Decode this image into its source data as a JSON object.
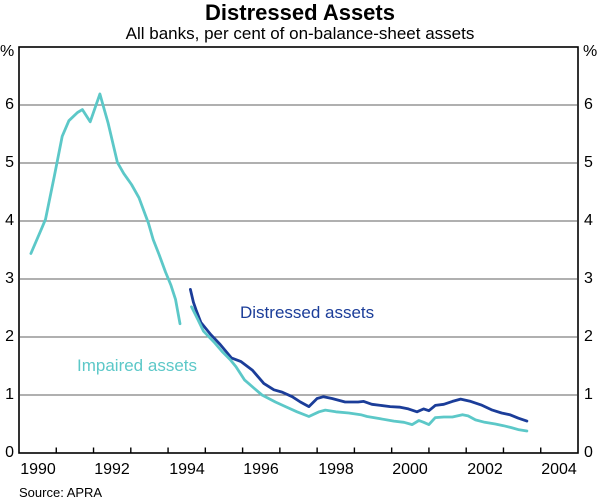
{
  "title": "Distressed Assets",
  "subtitle": "All banks, per cent of on-balance-sheet assets",
  "source": "Source: APRA",
  "axis": {
    "unit_left": "%",
    "unit_right": "%",
    "ytick_labels": [
      "0",
      "1",
      "2",
      "3",
      "4",
      "5",
      "6"
    ],
    "xtick_labels": [
      "1990",
      "1992",
      "1994",
      "1996",
      "1998",
      "2000",
      "2002",
      "2004"
    ]
  },
  "series_labels": {
    "distressed": "Distressed assets",
    "impaired": "Impaired assets"
  },
  "colors": {
    "distressed": "#1b3d99",
    "impaired": "#5cc8c8",
    "grid": "#808080",
    "axis": "#000000",
    "background": "#ffffff"
  },
  "chart_data": {
    "type": "line",
    "title": "Distressed Assets",
    "subtitle": "All banks, per cent of on-balance-sheet assets",
    "xlabel": "",
    "ylabel": "%",
    "x_range": [
      1990,
      2005
    ],
    "y_range": [
      0,
      7
    ],
    "y_gridlines": [
      1,
      2,
      3,
      4,
      5,
      6
    ],
    "x_tick_years": [
      1991,
      1992,
      1993,
      1994,
      1995,
      1996,
      1997,
      1998,
      1999,
      2000,
      2001,
      2002,
      2003,
      2004
    ],
    "x_label_years": [
      1990,
      1992,
      1994,
      1996,
      1998,
      2000,
      2002,
      2004
    ],
    "legend_position": "inline-labels",
    "grid": true,
    "series": [
      {
        "name": "Impaired assets (early series, pre break)",
        "color_key": "impaired",
        "points": [
          [
            1990.32,
            3.44
          ],
          [
            1990.62,
            3.89
          ],
          [
            1990.71,
            4.03
          ],
          [
            1990.95,
            4.78
          ],
          [
            1991.16,
            5.46
          ],
          [
            1991.34,
            5.73
          ],
          [
            1991.57,
            5.87
          ],
          [
            1991.7,
            5.92
          ],
          [
            1991.91,
            5.71
          ],
          [
            1992.17,
            6.19
          ],
          [
            1992.29,
            5.92
          ],
          [
            1992.39,
            5.69
          ],
          [
            1992.64,
            5.01
          ],
          [
            1992.81,
            4.82
          ],
          [
            1993.02,
            4.63
          ],
          [
            1993.22,
            4.4
          ],
          [
            1993.38,
            4.12
          ],
          [
            1993.47,
            3.97
          ],
          [
            1993.6,
            3.68
          ],
          [
            1993.76,
            3.42
          ],
          [
            1993.93,
            3.12
          ],
          [
            1994.08,
            2.89
          ],
          [
            1994.2,
            2.65
          ],
          [
            1994.32,
            2.23
          ]
        ]
      },
      {
        "name": "Distressed assets",
        "color_key": "distressed",
        "points": [
          [
            1994.6,
            2.82
          ],
          [
            1994.68,
            2.6
          ],
          [
            1994.75,
            2.47
          ],
          [
            1994.88,
            2.25
          ],
          [
            1995.15,
            2.04
          ],
          [
            1995.4,
            1.87
          ],
          [
            1995.7,
            1.64
          ],
          [
            1995.95,
            1.58
          ],
          [
            1996.26,
            1.43
          ],
          [
            1996.57,
            1.2
          ],
          [
            1996.84,
            1.09
          ],
          [
            1997.06,
            1.05
          ],
          [
            1997.33,
            0.97
          ],
          [
            1997.55,
            0.88
          ],
          [
            1997.78,
            0.8
          ],
          [
            1998.0,
            0.94
          ],
          [
            1998.17,
            0.97
          ],
          [
            1998.4,
            0.94
          ],
          [
            1998.75,
            0.88
          ],
          [
            1999.1,
            0.88
          ],
          [
            1999.25,
            0.89
          ],
          [
            1999.47,
            0.84
          ],
          [
            1999.7,
            0.82
          ],
          [
            1999.96,
            0.8
          ],
          [
            2000.23,
            0.79
          ],
          [
            2000.45,
            0.76
          ],
          [
            2000.68,
            0.71
          ],
          [
            2000.86,
            0.76
          ],
          [
            2001.0,
            0.73
          ],
          [
            2001.17,
            0.82
          ],
          [
            2001.4,
            0.84
          ],
          [
            2001.63,
            0.89
          ],
          [
            2001.85,
            0.93
          ],
          [
            2002.12,
            0.89
          ],
          [
            2002.4,
            0.83
          ],
          [
            2002.7,
            0.74
          ],
          [
            2002.95,
            0.69
          ],
          [
            2003.17,
            0.66
          ],
          [
            2003.4,
            0.6
          ],
          [
            2003.63,
            0.55
          ]
        ]
      },
      {
        "name": "Impaired assets",
        "color_key": "impaired",
        "points": [
          [
            1994.63,
            2.52
          ],
          [
            1994.8,
            2.3
          ],
          [
            1994.95,
            2.1
          ],
          [
            1995.25,
            1.9
          ],
          [
            1995.45,
            1.75
          ],
          [
            1995.68,
            1.6
          ],
          [
            1995.82,
            1.49
          ],
          [
            1996.05,
            1.26
          ],
          [
            1996.3,
            1.12
          ],
          [
            1996.52,
            1.0
          ],
          [
            1996.88,
            0.88
          ],
          [
            1997.15,
            0.8
          ],
          [
            1997.46,
            0.71
          ],
          [
            1997.78,
            0.63
          ],
          [
            1998.05,
            0.71
          ],
          [
            1998.22,
            0.74
          ],
          [
            1998.5,
            0.71
          ],
          [
            1998.85,
            0.69
          ],
          [
            1999.17,
            0.66
          ],
          [
            1999.34,
            0.63
          ],
          [
            1999.7,
            0.59
          ],
          [
            2000.06,
            0.55
          ],
          [
            2000.33,
            0.53
          ],
          [
            2000.55,
            0.49
          ],
          [
            2000.73,
            0.56
          ],
          [
            2000.86,
            0.53
          ],
          [
            2001.0,
            0.49
          ],
          [
            2001.17,
            0.61
          ],
          [
            2001.4,
            0.62
          ],
          [
            2001.63,
            0.62
          ],
          [
            2001.9,
            0.66
          ],
          [
            2002.05,
            0.64
          ],
          [
            2002.25,
            0.57
          ],
          [
            2002.5,
            0.53
          ],
          [
            2002.78,
            0.5
          ],
          [
            2003.0,
            0.47
          ],
          [
            2003.2,
            0.44
          ],
          [
            2003.42,
            0.4
          ],
          [
            2003.63,
            0.38
          ]
        ]
      }
    ]
  }
}
